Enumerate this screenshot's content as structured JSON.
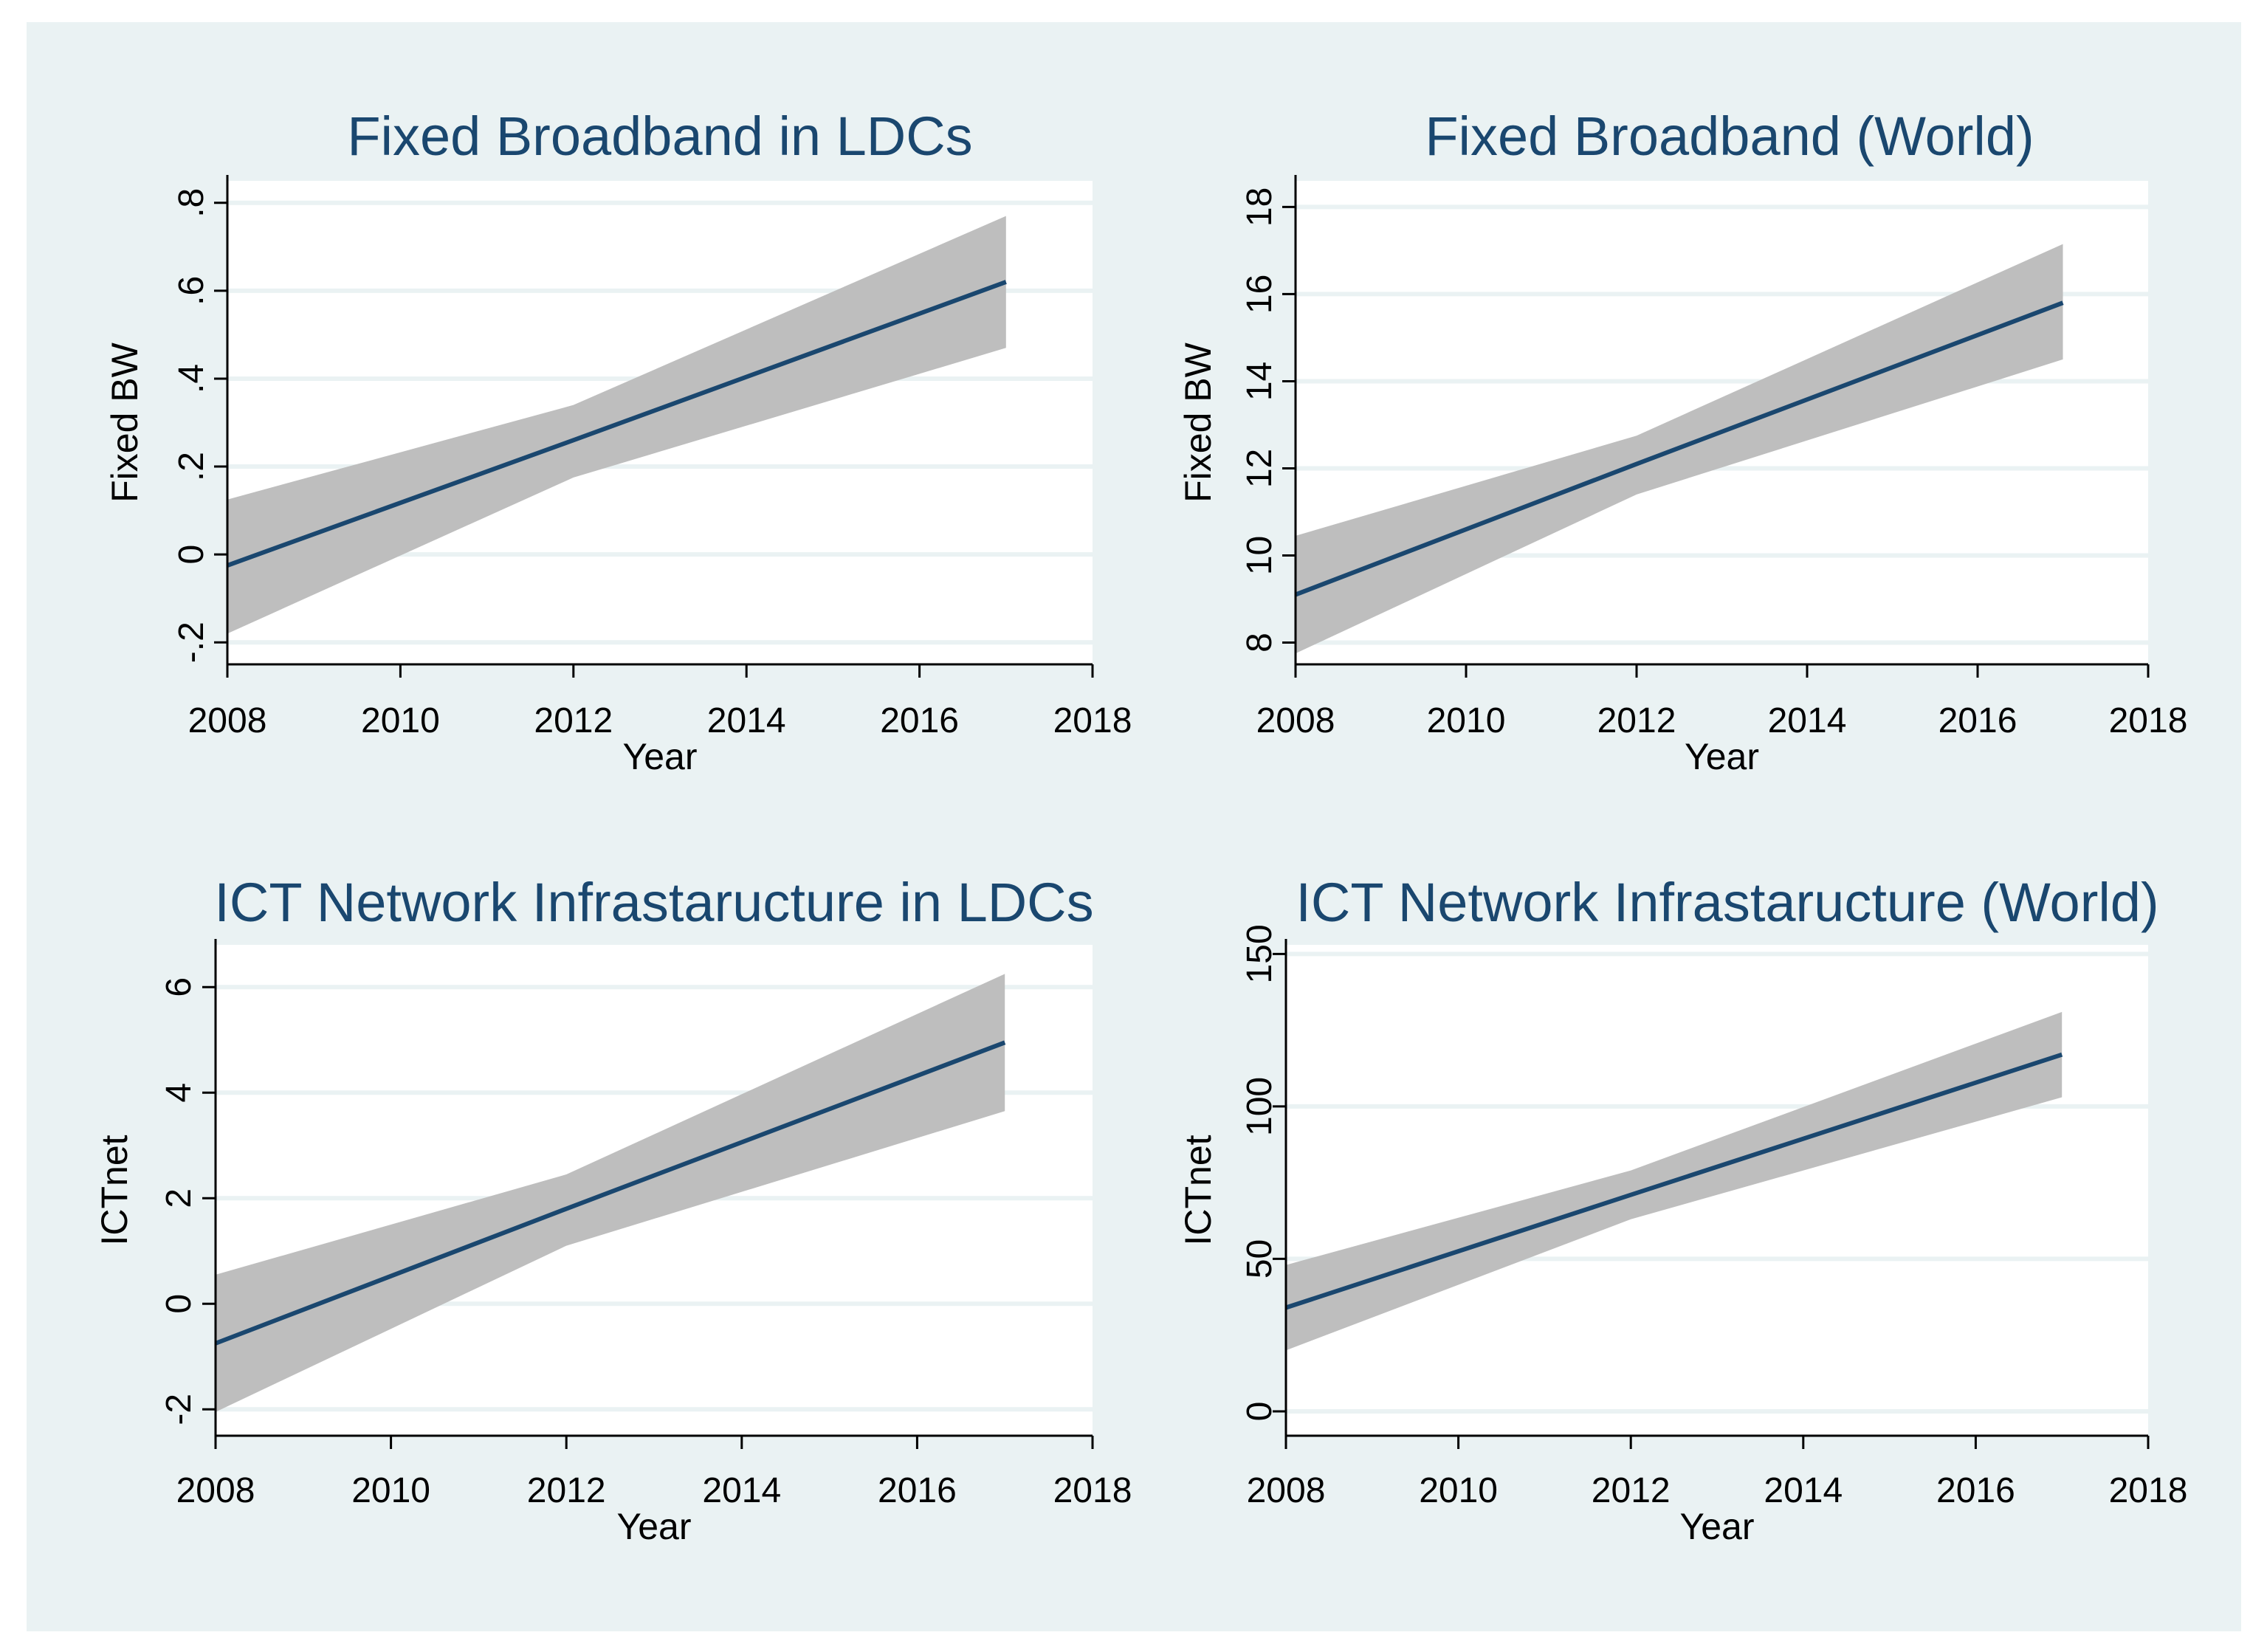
{
  "colors": {
    "page_background": "#ffffff",
    "figure_background": "#eaf2f3",
    "plot_background": "#ffffff",
    "gridline": "#eaf2f3",
    "band": "#bebebe",
    "line": "#1a476f",
    "title": "#1a476f",
    "axis": "#000000"
  },
  "chart_data": [
    {
      "type": "line",
      "title": "Fixed Broadband in LDCs",
      "xlabel": "Year",
      "ylabel": "Fixed BW",
      "xlim": [
        2008,
        2018
      ],
      "ylim": [
        -0.25,
        0.85
      ],
      "x_ticks": [
        2008,
        2010,
        2012,
        2014,
        2016,
        2018
      ],
      "x_tick_labels": [
        "2008",
        "2010",
        "2012",
        "2014",
        "2016",
        "2018"
      ],
      "y_ticks": [
        -0.2,
        0,
        0.2,
        0.4,
        0.6,
        0.8
      ],
      "y_tick_labels": [
        "-.2",
        "0",
        ".2",
        ".4",
        ".6",
        ".8"
      ],
      "grid": true,
      "series": [
        {
          "name": "fitted",
          "x": [
            2008,
            2012,
            2017
          ],
          "values": [
            -0.025,
            0.26,
            0.62
          ]
        },
        {
          "name": "ci_upper",
          "x": [
            2008,
            2012,
            2017
          ],
          "values": [
            0.125,
            0.34,
            0.77
          ]
        },
        {
          "name": "ci_lower",
          "x": [
            2008,
            2012,
            2017
          ],
          "values": [
            -0.18,
            0.175,
            0.47
          ]
        }
      ]
    },
    {
      "type": "line",
      "title": "Fixed Broadband (World)",
      "xlabel": "Year",
      "ylabel": "Fixed BW",
      "xlim": [
        2008,
        2018
      ],
      "ylim": [
        7.5,
        18.6
      ],
      "x_ticks": [
        2008,
        2010,
        2012,
        2014,
        2016,
        2018
      ],
      "x_tick_labels": [
        "2008",
        "2010",
        "2012",
        "2014",
        "2016",
        "2018"
      ],
      "y_ticks": [
        8,
        10,
        12,
        14,
        16,
        18
      ],
      "y_tick_labels": [
        "8",
        "10",
        "12",
        "14",
        "16",
        "18"
      ],
      "grid": true,
      "series": [
        {
          "name": "fitted",
          "x": [
            2008,
            2012,
            2017
          ],
          "values": [
            9.1,
            12.1,
            15.8
          ]
        },
        {
          "name": "ci_upper",
          "x": [
            2008,
            2012,
            2017
          ],
          "values": [
            10.45,
            12.75,
            17.15
          ]
        },
        {
          "name": "ci_lower",
          "x": [
            2008,
            2012,
            2017
          ],
          "values": [
            7.75,
            11.4,
            14.5
          ]
        }
      ]
    },
    {
      "type": "line",
      "title": "ICT Network Infrastaructure in LDCs",
      "xlabel": "Year",
      "ylabel": "ICTnet",
      "xlim": [
        2008,
        2018
      ],
      "ylim": [
        -2.5,
        6.8
      ],
      "x_ticks": [
        2008,
        2010,
        2012,
        2014,
        2016,
        2018
      ],
      "x_tick_labels": [
        "2008",
        "2010",
        "2012",
        "2014",
        "2016",
        "2018"
      ],
      "y_ticks": [
        -2,
        0,
        2,
        4,
        6
      ],
      "y_tick_labels": [
        "-2",
        "0",
        "2",
        "4",
        "6"
      ],
      "grid": true,
      "series": [
        {
          "name": "fitted",
          "x": [
            2008,
            2012,
            2017
          ],
          "values": [
            -0.75,
            1.8,
            4.95
          ]
        },
        {
          "name": "ci_upper",
          "x": [
            2008,
            2012,
            2017
          ],
          "values": [
            0.55,
            2.45,
            6.25
          ]
        },
        {
          "name": "ci_lower",
          "x": [
            2008,
            2012,
            2017
          ],
          "values": [
            -2.05,
            1.1,
            3.65
          ]
        }
      ]
    },
    {
      "type": "line",
      "title": "ICT Network Infrastaructure (World)",
      "xlabel": "Year",
      "ylabel": "ICTnet",
      "xlim": [
        2008,
        2018
      ],
      "ylim": [
        -8,
        153
      ],
      "x_ticks": [
        2008,
        2010,
        2012,
        2014,
        2016,
        2018
      ],
      "x_tick_labels": [
        "2008",
        "2010",
        "2012",
        "2014",
        "2016",
        "2018"
      ],
      "y_ticks": [
        0,
        50,
        100,
        150
      ],
      "y_tick_labels": [
        "0",
        "50",
        "100",
        "150"
      ],
      "grid": true,
      "series": [
        {
          "name": "fitted",
          "x": [
            2008,
            2012,
            2017
          ],
          "values": [
            34,
            71,
            117
          ]
        },
        {
          "name": "ci_upper",
          "x": [
            2008,
            2012,
            2017
          ],
          "values": [
            48,
            79,
            131
          ]
        },
        {
          "name": "ci_lower",
          "x": [
            2008,
            2012,
            2017
          ],
          "values": [
            20,
            63,
            103
          ]
        }
      ]
    }
  ]
}
